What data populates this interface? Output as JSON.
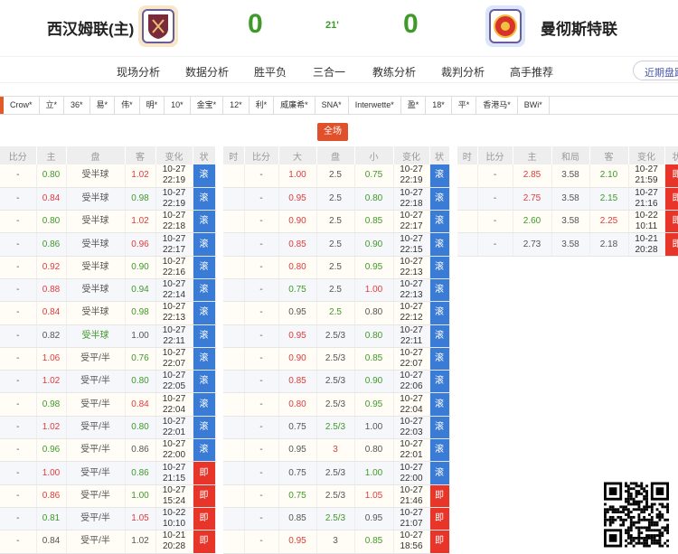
{
  "match": {
    "home": "西汉姆联(主)",
    "away": "曼彻斯特联",
    "home_score": "0",
    "away_score": "0",
    "minute": "21'"
  },
  "nav": {
    "items": [
      "现场分析",
      "数据分析",
      "胜平负",
      "三合一",
      "教练分析",
      "裁判分析",
      "高手推荐"
    ],
    "recent": "近期盘路"
  },
  "bookmakers": [
    "Crow*",
    "立*",
    "36*",
    "易*",
    "伟*",
    "明*",
    "10*",
    "金宝*",
    "12*",
    "利*",
    "威廉希*",
    "SNA*",
    "Interwette*",
    "盈*",
    "18*",
    "平*",
    "香港马*",
    "BWi*"
  ],
  "full_button": "全场",
  "colors": {
    "green": "#3f9a2a",
    "red": "#e03c3c",
    "live": "#3a7bd5",
    "pre": "#e8352a",
    "accent": "#e0502a"
  },
  "handicap": {
    "headers": [
      "比分",
      "主",
      "盘",
      "客",
      "变化",
      "状"
    ],
    "rows": [
      [
        "-",
        "0.80",
        "g",
        "受半球",
        "n",
        "1.02",
        "r",
        "10-27",
        "22:19",
        "滚"
      ],
      [
        "-",
        "0.84",
        "r",
        "受半球",
        "n",
        "0.98",
        "g",
        "10-27",
        "22:19",
        "滚"
      ],
      [
        "-",
        "0.80",
        "g",
        "受半球",
        "n",
        "1.02",
        "r",
        "10-27",
        "22:18",
        "滚"
      ],
      [
        "-",
        "0.86",
        "g",
        "受半球",
        "n",
        "0.96",
        "r",
        "10-27",
        "22:17",
        "滚"
      ],
      [
        "-",
        "0.92",
        "r",
        "受半球",
        "n",
        "0.90",
        "g",
        "10-27",
        "22:16",
        "滚"
      ],
      [
        "-",
        "0.88",
        "r",
        "受半球",
        "n",
        "0.94",
        "g",
        "10-27",
        "22:14",
        "滚"
      ],
      [
        "-",
        "0.84",
        "r",
        "受半球",
        "n",
        "0.98",
        "g",
        "10-27",
        "22:13",
        "滚"
      ],
      [
        "-",
        "0.82",
        "n",
        "受半球",
        "g",
        "1.00",
        "n",
        "10-27",
        "22:11",
        "滚"
      ],
      [
        "-",
        "1.06",
        "r",
        "受平/半",
        "n",
        "0.76",
        "g",
        "10-27",
        "22:07",
        "滚"
      ],
      [
        "-",
        "1.02",
        "r",
        "受平/半",
        "n",
        "0.80",
        "g",
        "10-27",
        "22:05",
        "滚"
      ],
      [
        "-",
        "0.98",
        "g",
        "受平/半",
        "n",
        "0.84",
        "r",
        "10-27",
        "22:04",
        "滚"
      ],
      [
        "-",
        "1.02",
        "r",
        "受平/半",
        "n",
        "0.80",
        "g",
        "10-27",
        "22:01",
        "滚"
      ],
      [
        "-",
        "0.96",
        "g",
        "受平/半",
        "n",
        "0.86",
        "n",
        "10-27",
        "22:00",
        "滚"
      ],
      [
        "-",
        "1.00",
        "r",
        "受平/半",
        "n",
        "0.86",
        "g",
        "10-27",
        "21:15",
        "即"
      ],
      [
        "-",
        "0.86",
        "r",
        "受平/半",
        "n",
        "1.00",
        "g",
        "10-27",
        "15:24",
        "即"
      ],
      [
        "-",
        "0.81",
        "g",
        "受平/半",
        "n",
        "1.05",
        "r",
        "10-22",
        "10:10",
        "即"
      ],
      [
        "-",
        "0.84",
        "n",
        "受平/半",
        "n",
        "1.02",
        "n",
        "10-21",
        "20:28",
        "即"
      ]
    ]
  },
  "overunder": {
    "headers": [
      "时",
      "比分",
      "大",
      "盘",
      "小",
      "变化",
      "状"
    ],
    "rows": [
      [
        "-",
        "1.00",
        "r",
        "2.5",
        "n",
        "0.75",
        "g",
        "10-27",
        "22:19",
        "滚"
      ],
      [
        "-",
        "0.95",
        "r",
        "2.5",
        "n",
        "0.80",
        "g",
        "10-27",
        "22:18",
        "滚"
      ],
      [
        "-",
        "0.90",
        "r",
        "2.5",
        "n",
        "0.85",
        "g",
        "10-27",
        "22:17",
        "滚"
      ],
      [
        "-",
        "0.85",
        "r",
        "2.5",
        "n",
        "0.90",
        "g",
        "10-27",
        "22:15",
        "滚"
      ],
      [
        "-",
        "0.80",
        "r",
        "2.5",
        "n",
        "0.95",
        "g",
        "10-27",
        "22:13",
        "滚"
      ],
      [
        "-",
        "0.75",
        "g",
        "2.5",
        "n",
        "1.00",
        "r",
        "10-27",
        "22:13",
        "滚"
      ],
      [
        "-",
        "0.95",
        "n",
        "2.5",
        "g",
        "0.80",
        "n",
        "10-27",
        "22:12",
        "滚"
      ],
      [
        "-",
        "0.95",
        "r",
        "2.5/3",
        "n",
        "0.80",
        "g",
        "10-27",
        "22:11",
        "滚"
      ],
      [
        "-",
        "0.90",
        "r",
        "2.5/3",
        "n",
        "0.85",
        "g",
        "10-27",
        "22:07",
        "滚"
      ],
      [
        "-",
        "0.85",
        "r",
        "2.5/3",
        "n",
        "0.90",
        "g",
        "10-27",
        "22:06",
        "滚"
      ],
      [
        "-",
        "0.80",
        "r",
        "2.5/3",
        "n",
        "0.95",
        "g",
        "10-27",
        "22:04",
        "滚"
      ],
      [
        "-",
        "0.75",
        "n",
        "2.5/3",
        "g",
        "1.00",
        "n",
        "10-27",
        "22:03",
        "滚"
      ],
      [
        "-",
        "0.95",
        "n",
        "3",
        "r",
        "0.80",
        "n",
        "10-27",
        "22:01",
        "滚"
      ],
      [
        "-",
        "0.75",
        "n",
        "2.5/3",
        "n",
        "1.00",
        "g",
        "10-27",
        "22:00",
        "滚"
      ],
      [
        "-",
        "0.75",
        "g",
        "2.5/3",
        "n",
        "1.05",
        "r",
        "10-27",
        "21:46",
        "即"
      ],
      [
        "-",
        "0.85",
        "n",
        "2.5/3",
        "g",
        "0.95",
        "n",
        "10-27",
        "21:07",
        "即"
      ],
      [
        "-",
        "0.95",
        "r",
        "3",
        "n",
        "0.85",
        "g",
        "10-27",
        "18:56",
        "即"
      ]
    ]
  },
  "europe": {
    "headers": [
      "时",
      "比分",
      "主",
      "和局",
      "客",
      "变化",
      "状"
    ],
    "rows": [
      [
        "-",
        "2.85",
        "r",
        "3.58",
        "n",
        "2.10",
        "g",
        "10-27",
        "21:59",
        "即"
      ],
      [
        "-",
        "2.75",
        "r",
        "3.58",
        "n",
        "2.15",
        "g",
        "10-27",
        "21:16",
        "即"
      ],
      [
        "-",
        "2.60",
        "g",
        "3.58",
        "n",
        "2.25",
        "r",
        "10-22",
        "10:11",
        "即"
      ],
      [
        "-",
        "2.73",
        "n",
        "3.58",
        "n",
        "2.18",
        "n",
        "10-21",
        "20:28",
        "即"
      ]
    ]
  }
}
